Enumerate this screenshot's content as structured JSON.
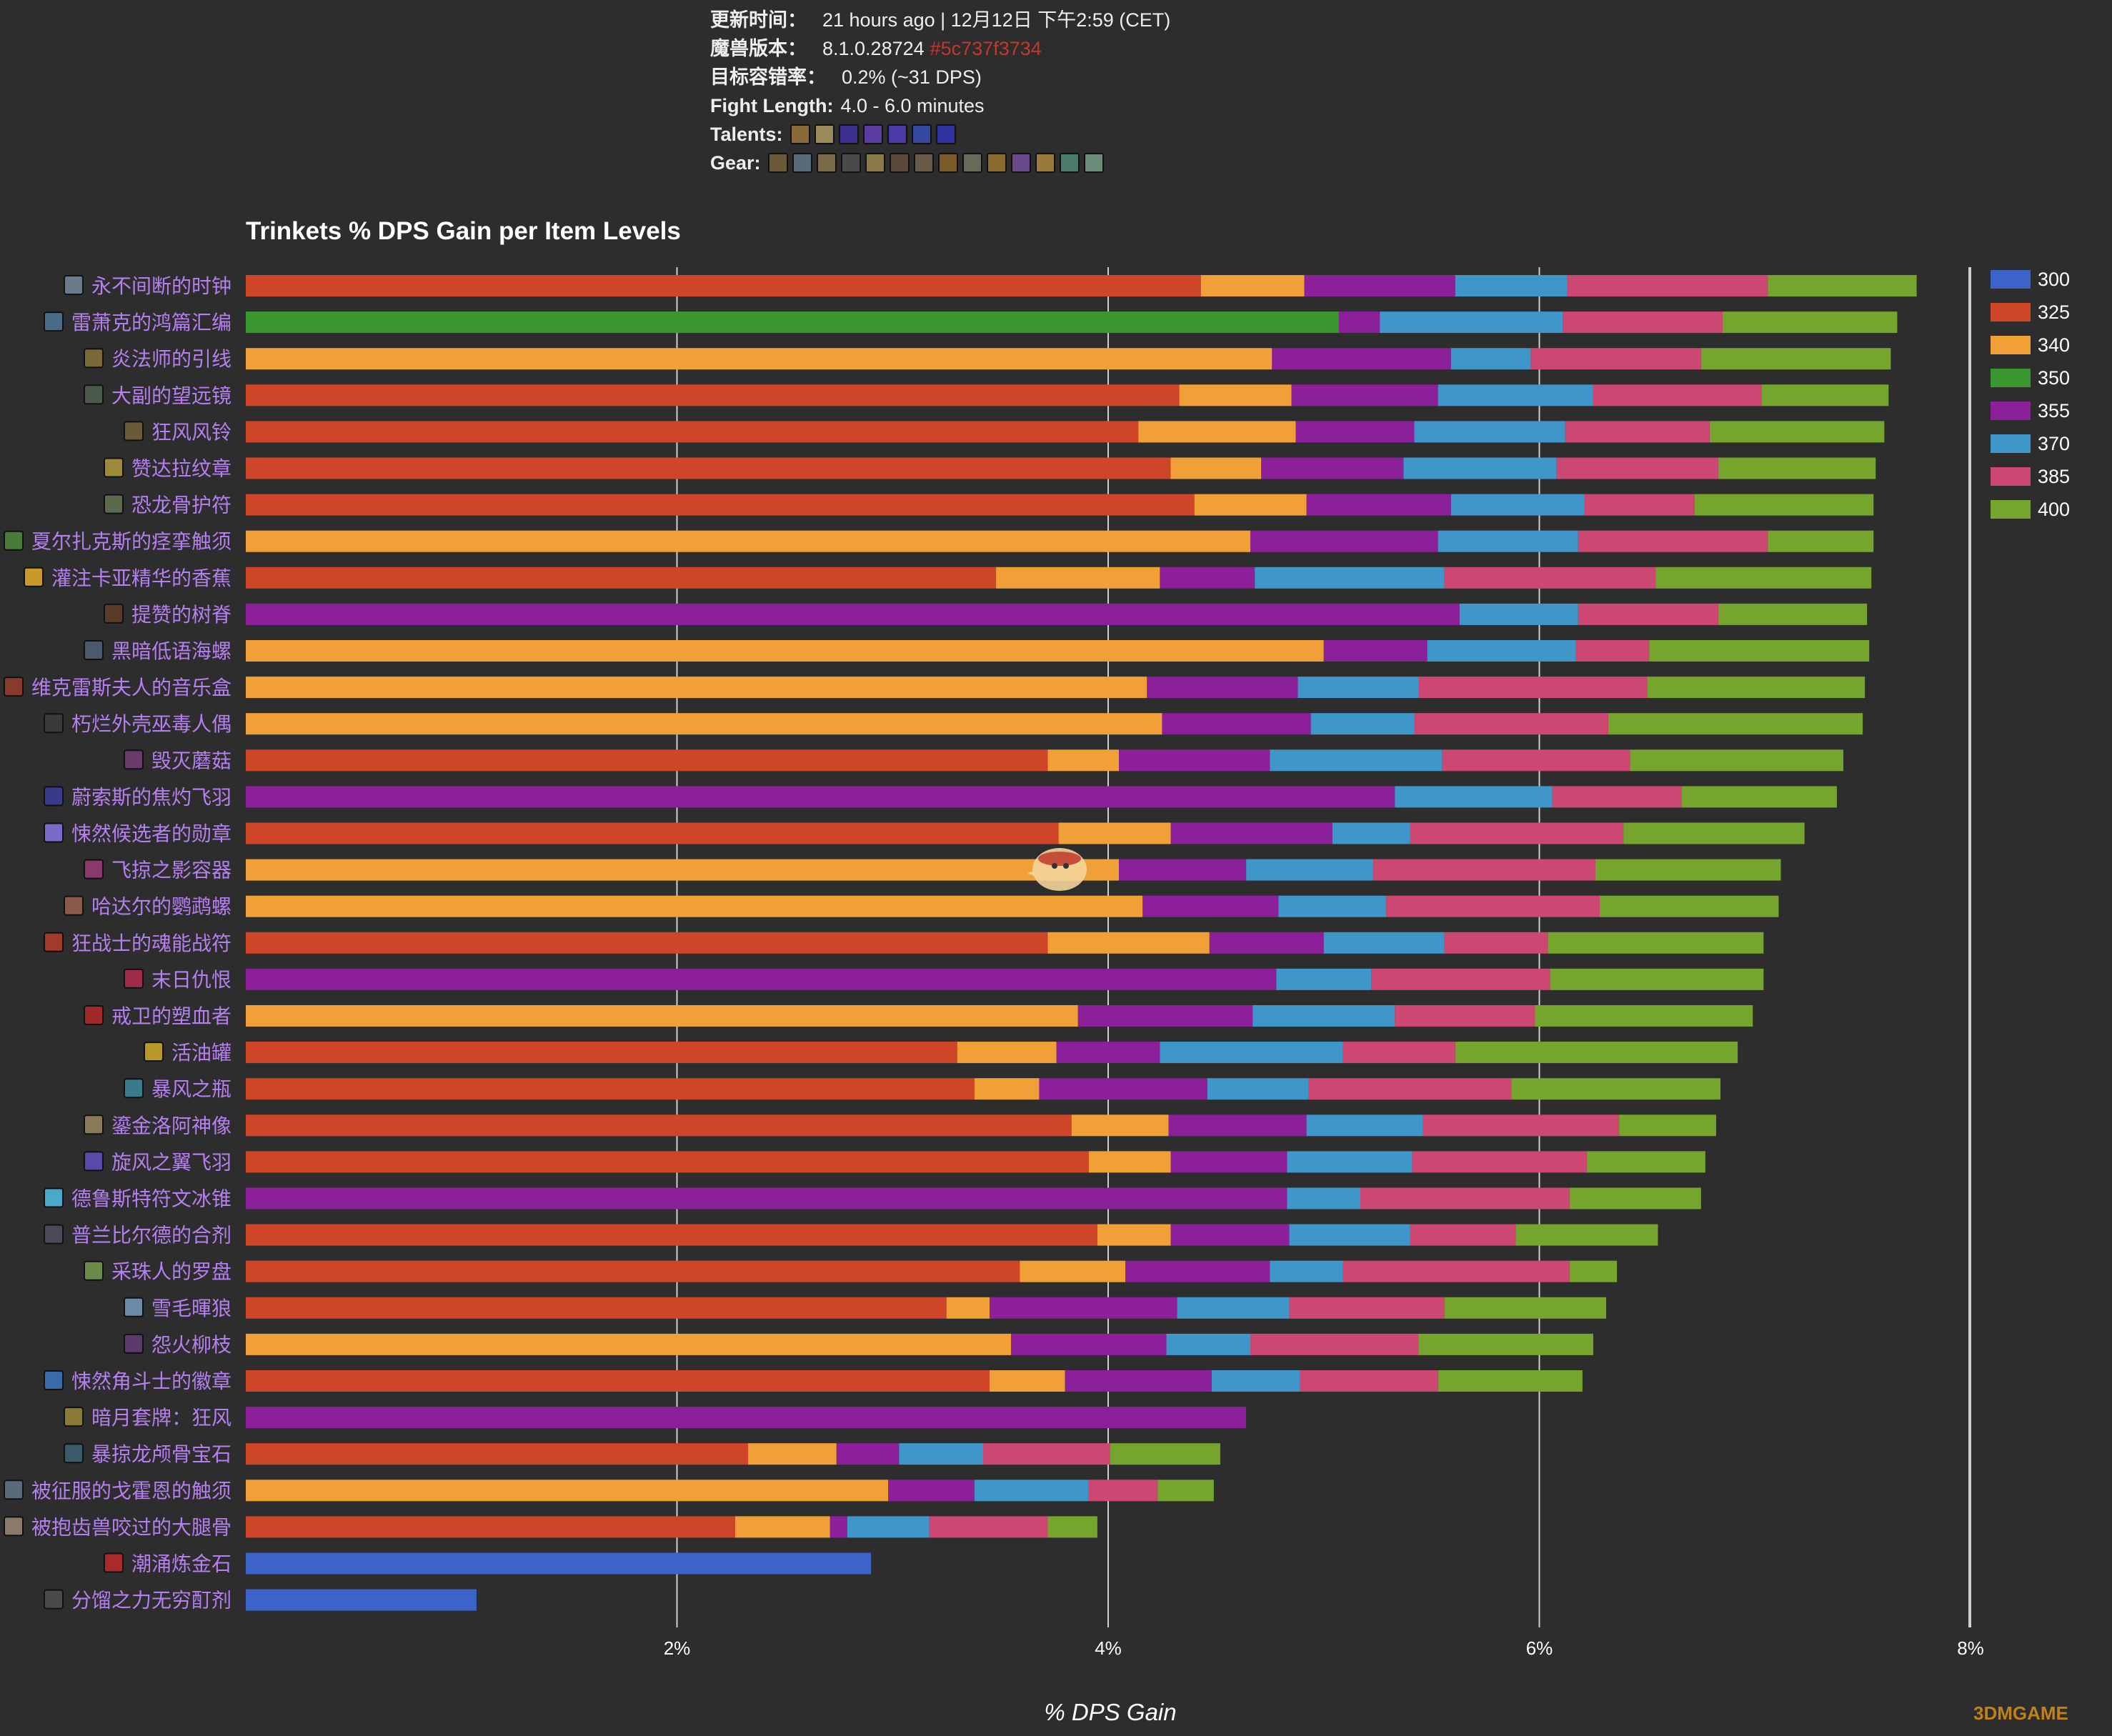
{
  "header": {
    "update_label": "更新时间：",
    "update_value": "21 hours ago | 12月12日 下午2:59 (CET)",
    "version_label": "魔兽版本：",
    "version_value": "8.1.0.28724",
    "version_hash": "#5c737f3734",
    "error_label": "目标容错率：",
    "error_value": "0.2% (~31 DPS)",
    "fight_label": "Fight Length:",
    "fight_value": "4.0 - 6.0 minutes",
    "talents_label": "Talents:",
    "gear_label": "Gear:",
    "talent_icon_colors": [
      "#8a6a3a",
      "#9a8a5a",
      "#3b2f8f",
      "#5a3c9e",
      "#4a3aa8",
      "#3548a0",
      "#3030a0"
    ],
    "gear_icon_colors": [
      "#6a5a3a",
      "#5a6a7a",
      "#7a6a4a",
      "#4a4a4a",
      "#8a7a4a",
      "#5a4a3a",
      "#6a5a4a",
      "#7a5a2a",
      "#6a6a5a",
      "#8a6a2a",
      "#6a4a8a",
      "#9a7a3a",
      "#4a7a6a",
      "#6a8a7a"
    ]
  },
  "watermark": "3DMGAME",
  "colors": {
    "300": "#3b63c8",
    "325": "#cf4527",
    "340": "#f0a037",
    "350": "#3a962f",
    "355": "#8c1f9a",
    "370": "#3f96c8",
    "385": "#cc4872",
    "400": "#76a52e",
    "label": "#b67ff0",
    "grid": "#cfcfcf",
    "text": "#ffffff"
  },
  "chart_data": {
    "type": "bar",
    "orientation": "horizontal",
    "stacked": true,
    "title": "Trinkets % DPS Gain per Item Levels",
    "xlabel": "% DPS Gain",
    "xlim": [
      0,
      8
    ],
    "xticks": [
      2,
      4,
      6,
      8
    ],
    "xtick_labels": [
      "2%",
      "4%",
      "6%",
      "8%"
    ],
    "legend_position": "right",
    "series_names": [
      "300",
      "325",
      "340",
      "350",
      "355",
      "370",
      "385",
      "400"
    ],
    "categories": [
      "永不间断的时钟",
      "雷萧克的鸿篇汇编",
      "炎法师的引线",
      "大副的望远镜",
      "狂风风铃",
      "赞达拉纹章",
      "恐龙骨护符",
      "夏尔扎克斯的痉挛触须",
      "灌注卡亚精华的香蕉",
      "提赞的树脊",
      "黑暗低语海螺",
      "维克雷斯夫人的音乐盒",
      "朽烂外壳巫毒人偶",
      "毁灭蘑菇",
      "蔚索斯的焦灼飞羽",
      "悚然候选者的勋章",
      "飞掠之影容器",
      "哈达尔的鹦鹉螺",
      "狂战士的魂能战符",
      "末日仇恨",
      "戒卫的塑血者",
      "活油罐",
      "暴风之瓶",
      "鎏金洛阿神像",
      "旋风之翼飞羽",
      "德鲁斯特符文冰锥",
      "普兰比尔德的合剂",
      "采珠人的罗盘",
      "雪毛暉狼",
      "怨火柳枝",
      "悚然角斗士的徽章",
      "暗月套牌：狂风",
      "暴掠龙颅骨宝石",
      "被征服的戈霍恩的触须",
      "被抱齿兽咬过的大腿骨",
      "潮涌炼金石",
      "分馏之力无穷酊剂"
    ],
    "icon_colors": [
      "#6a7a8a",
      "#4a6a8a",
      "#7a6a3a",
      "#4a5a4a",
      "#6a5a3a",
      "#9a8a3a",
      "#5a6a4a",
      "#4a7a3a",
      "#c89a2a",
      "#5a3a2a",
      "#4a5a6a",
      "#8a3a2a",
      "#3a3a3a",
      "#6a3a6a",
      "#3a3a8a",
      "#7a6ac8",
      "#8a3a6a",
      "#8a5a4a",
      "#a03a2a",
      "#a02a4a",
      "#a02a2a",
      "#b8982a",
      "#3a7a8a",
      "#8a7a5a",
      "#5a4aa8",
      "#4aa8c8",
      "#4a4a5a",
      "#6a8a4a",
      "#6a8aa8",
      "#5a3a6a",
      "#3a6aa8",
      "#8a7a3a",
      "#3a5a6a",
      "#5a6a7a",
      "#8a7a6a",
      "#a82a2a",
      "#4a4a4a"
    ],
    "segments": [
      [
        [
          325,
          4.43
        ],
        [
          340,
          0.48
        ],
        [
          355,
          0.7
        ],
        [
          370,
          0.52
        ],
        [
          385,
          0.93
        ],
        [
          400,
          0.69
        ]
      ],
      [
        [
          350,
          5.07
        ],
        [
          355,
          0.19
        ],
        [
          370,
          0.85
        ],
        [
          385,
          0.74
        ],
        [
          400,
          0.81
        ]
      ],
      [
        [
          340,
          4.76
        ],
        [
          355,
          0.83
        ],
        [
          370,
          0.37
        ],
        [
          385,
          0.79
        ],
        [
          400,
          0.88
        ]
      ],
      [
        [
          325,
          4.33
        ],
        [
          340,
          0.52
        ],
        [
          355,
          0.68
        ],
        [
          370,
          0.72
        ],
        [
          385,
          0.78
        ],
        [
          400,
          0.59
        ]
      ],
      [
        [
          325,
          4.14
        ],
        [
          340,
          0.73
        ],
        [
          355,
          0.55
        ],
        [
          370,
          0.7
        ],
        [
          385,
          0.67
        ],
        [
          400,
          0.81
        ]
      ],
      [
        [
          325,
          4.29
        ],
        [
          340,
          0.42
        ],
        [
          355,
          0.66
        ],
        [
          370,
          0.71
        ],
        [
          385,
          0.75
        ],
        [
          400,
          0.73
        ]
      ],
      [
        [
          325,
          4.4
        ],
        [
          340,
          0.52
        ],
        [
          355,
          0.67
        ],
        [
          370,
          0.62
        ],
        [
          385,
          0.51
        ],
        [
          400,
          0.83
        ]
      ],
      [
        [
          340,
          4.66
        ],
        [
          355,
          0.87
        ],
        [
          370,
          0.65
        ],
        [
          385,
          0.88
        ],
        [
          400,
          0.49
        ]
      ],
      [
        [
          325,
          3.48
        ],
        [
          340,
          0.76
        ],
        [
          355,
          0.44
        ],
        [
          370,
          0.88
        ],
        [
          385,
          0.98
        ],
        [
          400,
          1.0
        ]
      ],
      [
        [
          355,
          5.63
        ],
        [
          370,
          0.55
        ],
        [
          385,
          0.65
        ],
        [
          400,
          0.69
        ]
      ],
      [
        [
          340,
          5.0
        ],
        [
          355,
          0.48
        ],
        [
          370,
          0.69
        ],
        [
          385,
          0.34
        ],
        [
          400,
          1.02
        ]
      ],
      [
        [
          340,
          4.18
        ],
        [
          355,
          0.7
        ],
        [
          370,
          0.56
        ],
        [
          385,
          1.06
        ],
        [
          400,
          1.01
        ]
      ],
      [
        [
          340,
          4.25
        ],
        [
          355,
          0.69
        ],
        [
          370,
          0.48
        ],
        [
          385,
          0.9
        ],
        [
          400,
          1.18
        ]
      ],
      [
        [
          325,
          3.72
        ],
        [
          340,
          0.33
        ],
        [
          355,
          0.7
        ],
        [
          370,
          0.8
        ],
        [
          385,
          0.87
        ],
        [
          400,
          0.99
        ]
      ],
      [
        [
          355,
          5.33
        ],
        [
          370,
          0.73
        ],
        [
          385,
          0.6
        ],
        [
          400,
          0.72
        ]
      ],
      [
        [
          325,
          3.77
        ],
        [
          340,
          0.52
        ],
        [
          355,
          0.75
        ],
        [
          370,
          0.36
        ],
        [
          385,
          0.99
        ],
        [
          400,
          0.84
        ]
      ],
      [
        [
          340,
          4.05
        ],
        [
          355,
          0.59
        ],
        [
          370,
          0.59
        ],
        [
          385,
          1.03
        ],
        [
          400,
          0.86
        ]
      ],
      [
        [
          340,
          4.16
        ],
        [
          355,
          0.63
        ],
        [
          370,
          0.5
        ],
        [
          385,
          0.99
        ],
        [
          400,
          0.83
        ]
      ],
      [
        [
          325,
          3.72
        ],
        [
          340,
          0.75
        ],
        [
          355,
          0.53
        ],
        [
          370,
          0.56
        ],
        [
          385,
          0.48
        ],
        [
          400,
          1.0
        ]
      ],
      [
        [
          355,
          4.78
        ],
        [
          370,
          0.44
        ],
        [
          385,
          0.83
        ],
        [
          400,
          0.99
        ]
      ],
      [
        [
          340,
          3.86
        ],
        [
          355,
          0.81
        ],
        [
          370,
          0.66
        ],
        [
          385,
          0.65
        ],
        [
          400,
          1.01
        ]
      ],
      [
        [
          325,
          3.3
        ],
        [
          340,
          0.46
        ],
        [
          355,
          0.48
        ],
        [
          370,
          0.85
        ],
        [
          385,
          0.52
        ],
        [
          400,
          1.31
        ]
      ],
      [
        [
          325,
          3.38
        ],
        [
          340,
          0.3
        ],
        [
          355,
          0.78
        ],
        [
          370,
          0.47
        ],
        [
          385,
          0.94
        ],
        [
          400,
          0.97
        ]
      ],
      [
        [
          325,
          3.83
        ],
        [
          340,
          0.45
        ],
        [
          355,
          0.64
        ],
        [
          370,
          0.54
        ],
        [
          385,
          0.91
        ],
        [
          400,
          0.45
        ]
      ],
      [
        [
          325,
          3.91
        ],
        [
          340,
          0.38
        ],
        [
          355,
          0.54
        ],
        [
          370,
          0.58
        ],
        [
          385,
          0.81
        ],
        [
          400,
          0.55
        ]
      ],
      [
        [
          355,
          4.83
        ],
        [
          370,
          0.34
        ],
        [
          385,
          0.97
        ],
        [
          400,
          0.61
        ]
      ],
      [
        [
          325,
          3.95
        ],
        [
          340,
          0.34
        ],
        [
          355,
          0.55
        ],
        [
          370,
          0.56
        ],
        [
          385,
          0.49
        ],
        [
          400,
          0.66
        ]
      ],
      [
        [
          325,
          3.59
        ],
        [
          340,
          0.49
        ],
        [
          355,
          0.67
        ],
        [
          370,
          0.34
        ],
        [
          385,
          1.05
        ],
        [
          400,
          0.22
        ]
      ],
      [
        [
          325,
          3.25
        ],
        [
          340,
          0.2
        ],
        [
          355,
          0.87
        ],
        [
          370,
          0.52
        ],
        [
          385,
          0.72
        ],
        [
          400,
          0.75
        ]
      ],
      [
        [
          340,
          3.55
        ],
        [
          355,
          0.72
        ],
        [
          370,
          0.39
        ],
        [
          385,
          0.78
        ],
        [
          400,
          0.81
        ]
      ],
      [
        [
          325,
          3.45
        ],
        [
          340,
          0.35
        ],
        [
          355,
          0.68
        ],
        [
          370,
          0.41
        ],
        [
          385,
          0.64
        ],
        [
          400,
          0.67
        ]
      ],
      [
        [
          355,
          4.64
        ]
      ],
      [
        [
          325,
          2.33
        ],
        [
          340,
          0.41
        ],
        [
          355,
          0.29
        ],
        [
          370,
          0.39
        ],
        [
          385,
          0.59
        ],
        [
          400,
          0.51
        ]
      ],
      [
        [
          340,
          2.98
        ],
        [
          355,
          0.4
        ],
        [
          370,
          0.53
        ],
        [
          385,
          0.32
        ],
        [
          400,
          0.26
        ]
      ],
      [
        [
          325,
          2.27
        ],
        [
          340,
          0.44
        ],
        [
          355,
          0.08
        ],
        [
          370,
          0.38
        ],
        [
          385,
          0.55
        ],
        [
          400,
          0.23
        ]
      ],
      [
        [
          300,
          2.9
        ]
      ],
      [
        [
          300,
          1.07
        ]
      ]
    ]
  }
}
